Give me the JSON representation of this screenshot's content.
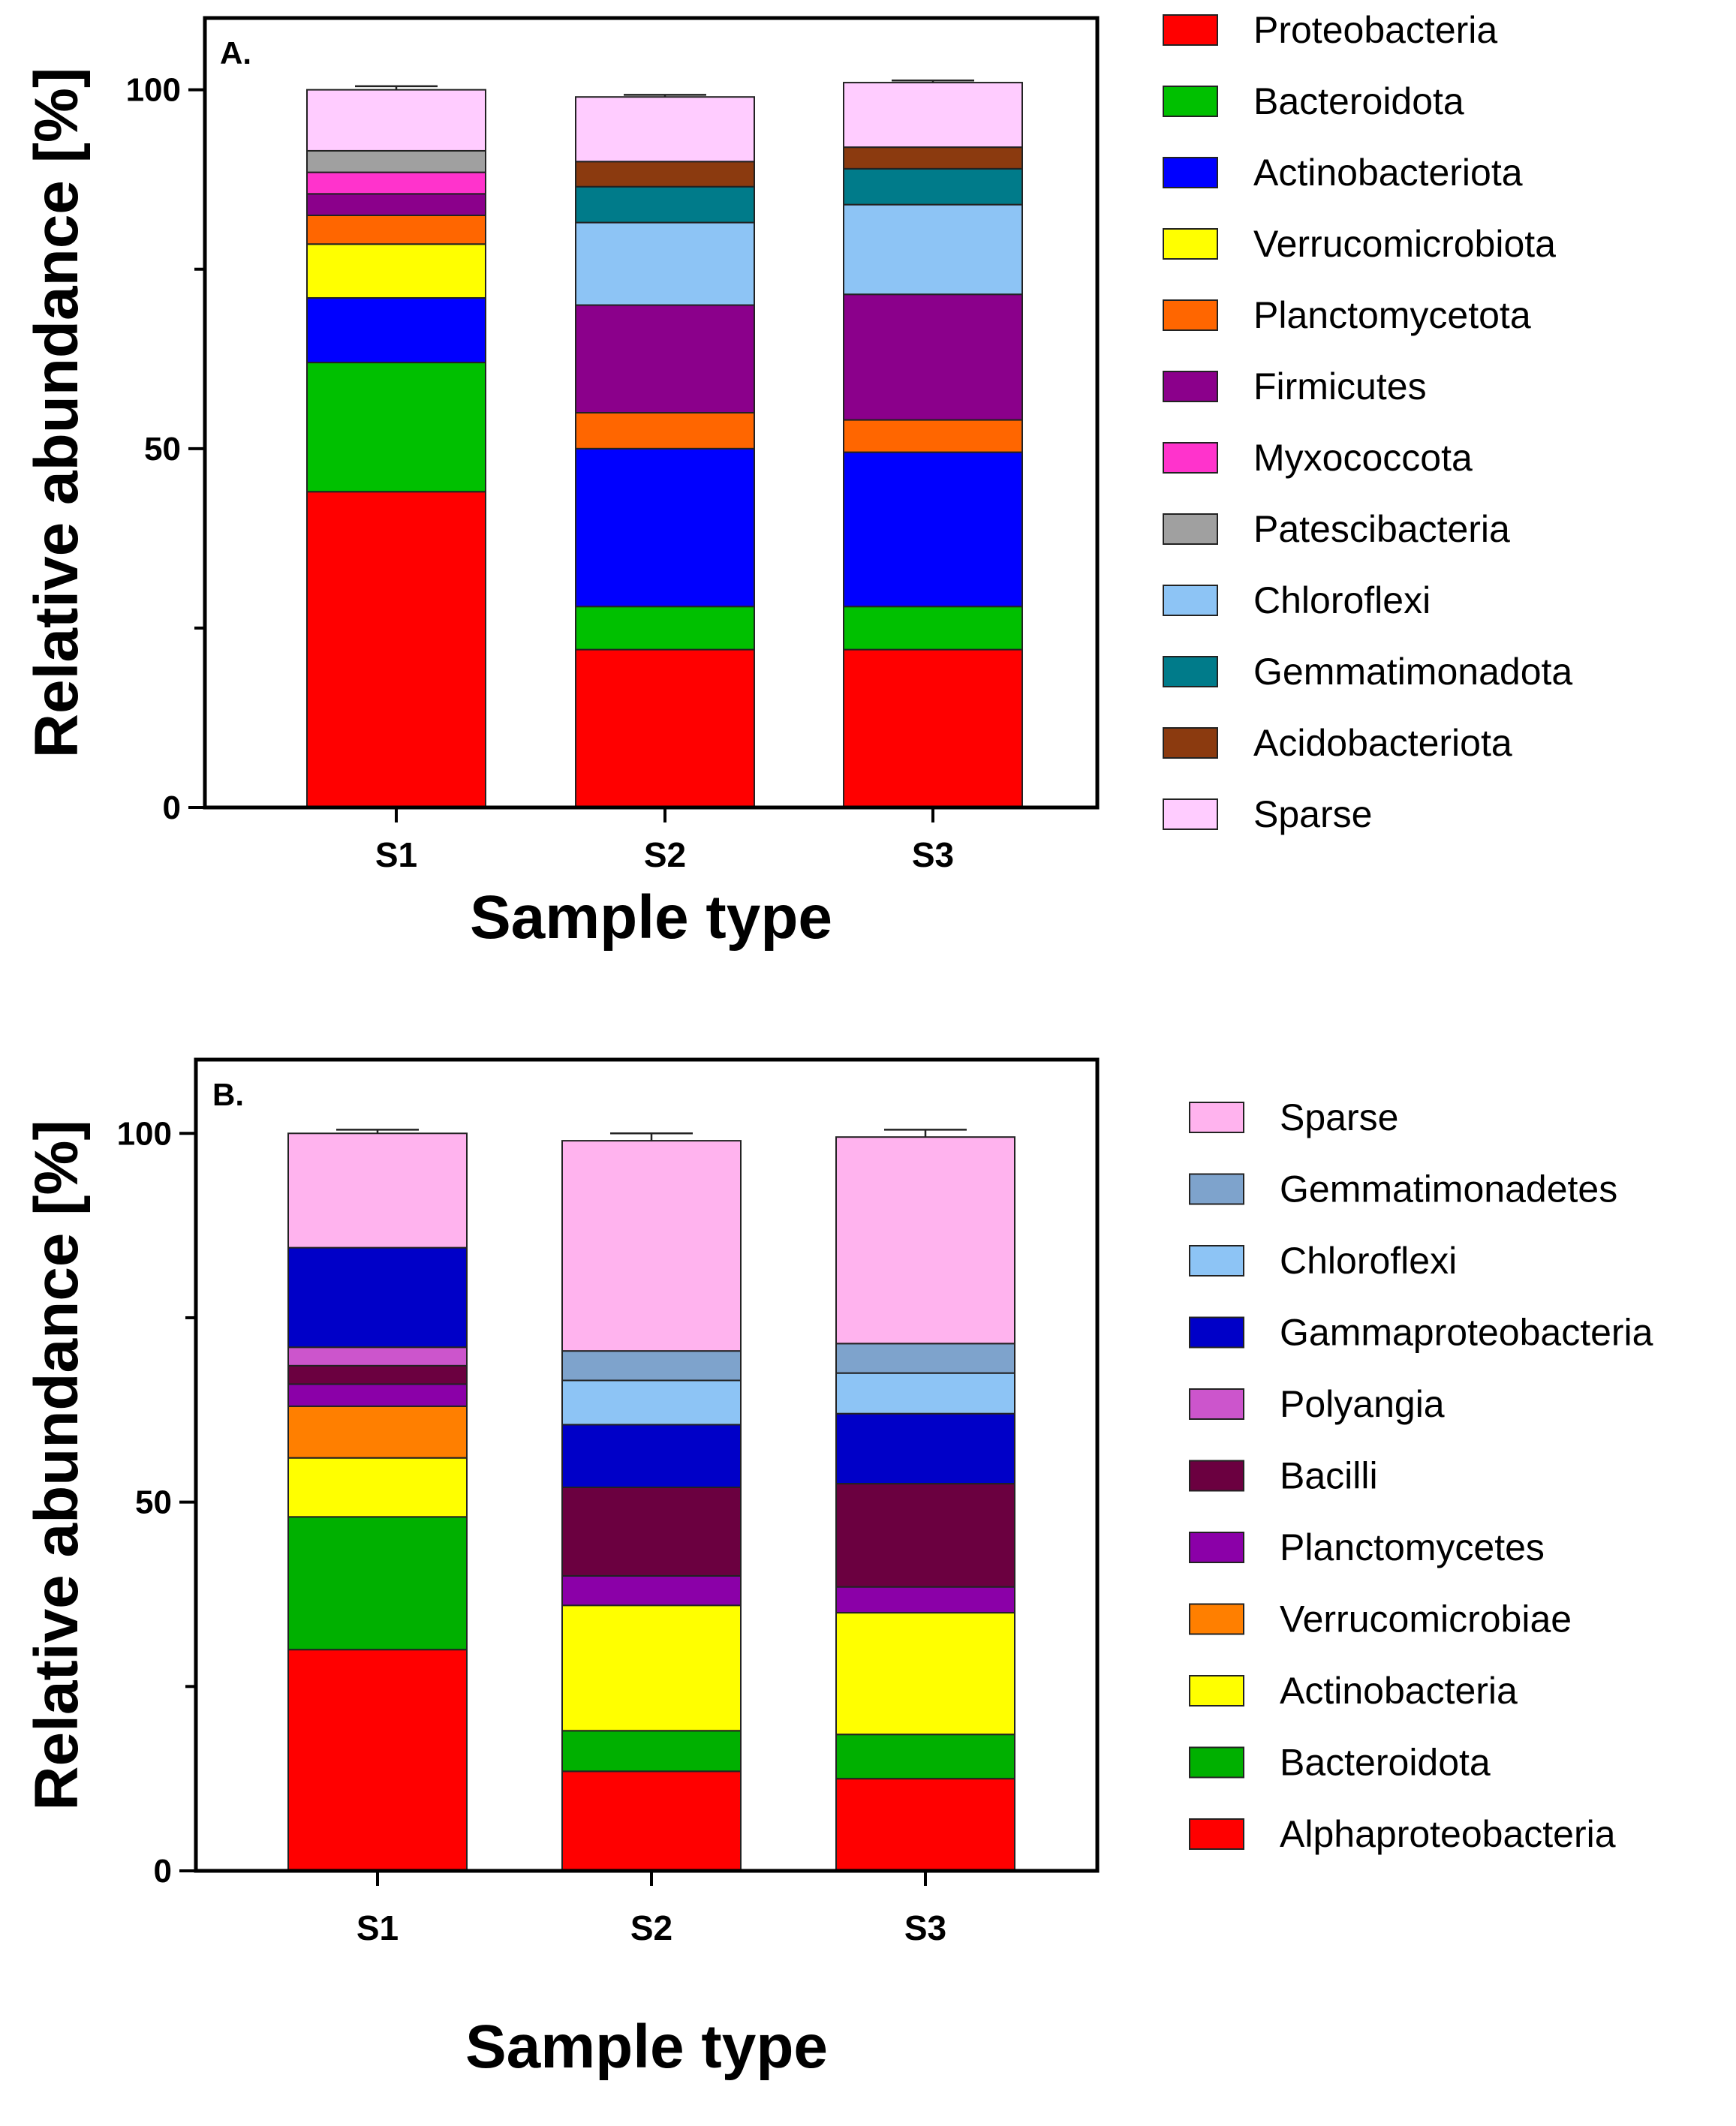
{
  "chart_data": [
    {
      "type": "bar",
      "stacked": true,
      "panel_label": "A.",
      "xlabel": "Sample type",
      "ylabel": "Relative abundance [%]",
      "ylim": [
        0,
        110
      ],
      "yticks": [
        "0",
        "50",
        "100"
      ],
      "categories": [
        "S1",
        "S2",
        "S3"
      ],
      "legend_position": "right",
      "series": [
        {
          "name": "Proteobacteria",
          "color": "#ff0000",
          "values": [
            44,
            22,
            22
          ],
          "errors": [
            2,
            1.5,
            1
          ]
        },
        {
          "name": "Bacteroidota",
          "color": "#00c000",
          "values": [
            18,
            6,
            6
          ],
          "errors": [
            0,
            0,
            0
          ]
        },
        {
          "name": "Actinobacteriota",
          "color": "#0000ff",
          "values": [
            9,
            22,
            21.5
          ],
          "errors": [
            0.5,
            0,
            0
          ]
        },
        {
          "name": "Verrucomicrobiota",
          "color": "#ffff00",
          "values": [
            7.5,
            0,
            0
          ],
          "errors": [
            0.5,
            0,
            0
          ]
        },
        {
          "name": "Planctomycetota",
          "color": "#ff6600",
          "values": [
            4,
            5,
            4.5
          ],
          "errors": [
            0,
            1.5,
            2
          ]
        },
        {
          "name": "Firmicutes",
          "color": "#8b008b",
          "values": [
            3,
            15,
            17.5
          ],
          "errors": [
            1.5,
            0,
            0
          ]
        },
        {
          "name": "Myxococcota",
          "color": "#ff33cc",
          "values": [
            3,
            0,
            0
          ],
          "errors": [
            0,
            0,
            0
          ]
        },
        {
          "name": "Patescibacteria",
          "color": "#a0a0a0",
          "values": [
            3,
            0,
            0
          ],
          "errors": [
            1,
            0,
            0
          ]
        },
        {
          "name": "Chloroflexi",
          "color": "#8dc4f5",
          "values": [
            0,
            11.5,
            12.5
          ],
          "errors": [
            0,
            4,
            0.5
          ]
        },
        {
          "name": "Gemmatimonadota",
          "color": "#007b8a",
          "values": [
            0,
            5,
            5
          ],
          "errors": [
            0,
            0.5,
            4
          ]
        },
        {
          "name": "Acidobacteriota",
          "color": "#8b3a0f",
          "values": [
            0,
            3.5,
            3
          ],
          "errors": [
            0,
            0.5,
            0.5
          ]
        },
        {
          "name": "Sparse",
          "color": "#ffccff",
          "values": [
            8.5,
            9,
            9
          ],
          "errors": [
            0.5,
            0.3,
            0.3
          ]
        }
      ]
    },
    {
      "type": "bar",
      "stacked": true,
      "panel_label": "B.",
      "xlabel": "Sample type",
      "ylabel": "Relative abundance [%]",
      "ylim": [
        0,
        110
      ],
      "yticks": [
        "0",
        "50",
        "100"
      ],
      "categories": [
        "S1",
        "S2",
        "S3"
      ],
      "legend_position": "right",
      "series": [
        {
          "name": "Alphaproteobacteria",
          "color": "#ff0000",
          "values": [
            30,
            13.5,
            12.5
          ],
          "errors": [
            0.5,
            0.5,
            0.5
          ]
        },
        {
          "name": "Bacteroidota",
          "color": "#00b000",
          "values": [
            18,
            5.5,
            6
          ],
          "errors": [
            0.5,
            0.5,
            0.5
          ]
        },
        {
          "name": "Actinobacteria",
          "color": "#ffff00",
          "values": [
            8,
            17,
            16.5
          ],
          "errors": [
            0,
            0,
            0
          ]
        },
        {
          "name": "Verrucomicrobiae",
          "color": "#ff7f00",
          "values": [
            7,
            0,
            0
          ],
          "errors": [
            1,
            0,
            0
          ]
        },
        {
          "name": "Planctomycetes",
          "color": "#8b00a8",
          "values": [
            3,
            4,
            3.5
          ],
          "errors": [
            0,
            1.5,
            1.5
          ]
        },
        {
          "name": "Bacilli",
          "color": "#6b0040",
          "values": [
            2.5,
            12,
            14
          ],
          "errors": [
            0,
            0,
            0
          ]
        },
        {
          "name": "Polyangia",
          "color": "#cc55cc",
          "values": [
            2.5,
            0,
            0
          ],
          "errors": [
            0,
            0,
            0
          ]
        },
        {
          "name": "Gammaproteobacteria",
          "color": "#0000c8",
          "values": [
            13.5,
            8.5,
            9.5
          ],
          "errors": [
            1,
            0.5,
            0.5
          ]
        },
        {
          "name": "Chloroflexi",
          "color": "#8dc4f5",
          "values": [
            0,
            6,
            5.5
          ],
          "errors": [
            0,
            0.5,
            1
          ]
        },
        {
          "name": "Gemmatimonadetes",
          "color": "#7ea3cc",
          "values": [
            0,
            4,
            4
          ],
          "errors": [
            0,
            0.5,
            0.5
          ]
        },
        {
          "name": "Sparse",
          "color": "#ffb3ee",
          "values": [
            15.5,
            28.5,
            28
          ],
          "errors": [
            0.5,
            1,
            1
          ]
        }
      ]
    }
  ]
}
